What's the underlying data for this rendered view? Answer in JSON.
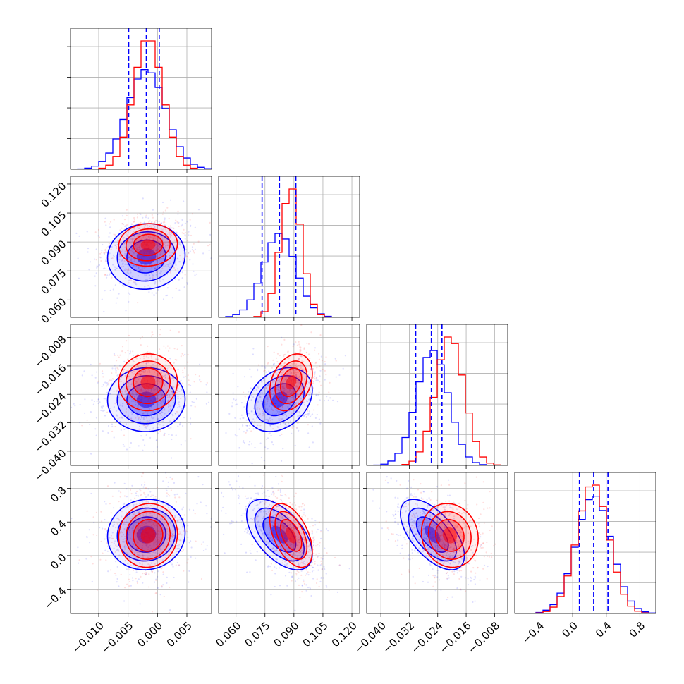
{
  "chart_data": {
    "type": "corner",
    "title": "",
    "parameters": [
      {
        "range": [
          -0.0148,
          0.0092
        ],
        "ticks": [
          -0.01,
          -0.005,
          0.0,
          0.005
        ],
        "tick_labels": [
          "−0.010",
          "−0.005",
          "0.000",
          "0.005"
        ]
      },
      {
        "range": [
          0.051,
          0.124
        ],
        "ticks": [
          0.06,
          0.075,
          0.09,
          0.105,
          0.12
        ],
        "tick_labels": [
          "0.060",
          "0.075",
          "0.090",
          "0.105",
          "0.120"
        ]
      },
      {
        "range": [
          -0.044,
          -0.0043
        ],
        "ticks": [
          -0.04,
          -0.032,
          -0.024,
          -0.016,
          -0.008
        ],
        "tick_labels": [
          "−0.040",
          "−0.032",
          "−0.024",
          "−0.016",
          "−0.008"
        ]
      },
      {
        "range": [
          -0.69,
          0.99
        ],
        "ticks": [
          -0.4,
          0.0,
          0.4,
          0.8
        ],
        "tick_labels": [
          "−0.4",
          "0.0",
          "0.4",
          "0.8"
        ]
      }
    ],
    "series": [
      {
        "color": "#0000ff",
        "mean": [
          -0.0019,
          0.0825,
          -0.0255,
          0.25
        ],
        "std": [
          0.0033,
          0.0085,
          0.0045,
          0.21
        ],
        "correlations": [
          [
            0,
            1,
            0.05
          ],
          [
            0,
            2,
            0.02
          ],
          [
            0,
            3,
            0.05
          ],
          [
            1,
            2,
            0.3
          ],
          [
            1,
            3,
            -0.55
          ],
          [
            2,
            3,
            -0.6
          ]
        ],
        "quantiles": [
          [
            -0.0049,
            -0.0019,
            0.0003
          ],
          [
            0.0735,
            0.0825,
            0.091
          ],
          [
            -0.0302,
            -0.0258,
            -0.0228
          ],
          [
            0.08,
            0.25,
            0.42
          ]
        ]
      },
      {
        "color": "#ff0000",
        "mean": [
          -0.0016,
          0.0885,
          -0.0206,
          0.24
        ],
        "std": [
          0.0025,
          0.0055,
          0.004,
          0.19
        ],
        "correlations": [
          [
            0,
            1,
            0.05
          ],
          [
            0,
            2,
            0.02
          ],
          [
            0,
            3,
            0.05
          ],
          [
            1,
            2,
            0.3
          ],
          [
            1,
            3,
            -0.5
          ],
          [
            2,
            3,
            -0.1
          ]
        ],
        "quantiles": [
          [
            -0.0049,
            -0.0019,
            0.0003
          ],
          [
            0.0735,
            0.0825,
            0.091
          ],
          [
            -0.0302,
            -0.0258,
            -0.0228
          ],
          [
            0.08,
            0.25,
            0.42
          ]
        ]
      }
    ],
    "grid": true,
    "quantile_line_color": "#0000ff"
  }
}
